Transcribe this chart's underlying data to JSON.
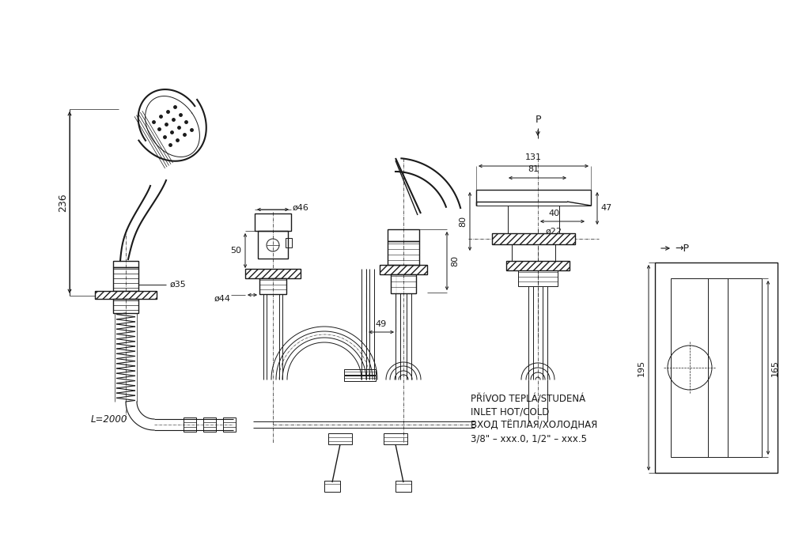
{
  "bg_color": "#ffffff",
  "line_color": "#1a1a1a",
  "figsize": [
    10.0,
    7.07
  ],
  "dpi": 100,
  "annotations": {
    "dim_236": "236",
    "dim_d35": "ø35",
    "dim_L2000": "L=2000",
    "dim_d46": "ø46",
    "dim_d44": "ø44",
    "dim_50": "50",
    "dim_49": "49",
    "dim_80": "80",
    "dim_131": "131",
    "dim_81": "81",
    "dim_40": "40",
    "dim_d22": "ø22",
    "dim_47": "47",
    "dim_P_top": "P",
    "dim_P_right": "→P",
    "dim_195": "195",
    "dim_165": "165",
    "text_line1": "PŘÍVOD TEPLÁ/STUDENÁ",
    "text_line2": "INLET HOT/COLD",
    "text_line3": "ВХОД ТЁПЛАЯ/ХОЛОДНАЯ",
    "text_line4": "3/8\" – xxx.0, 1/2\" – xxx.5"
  }
}
